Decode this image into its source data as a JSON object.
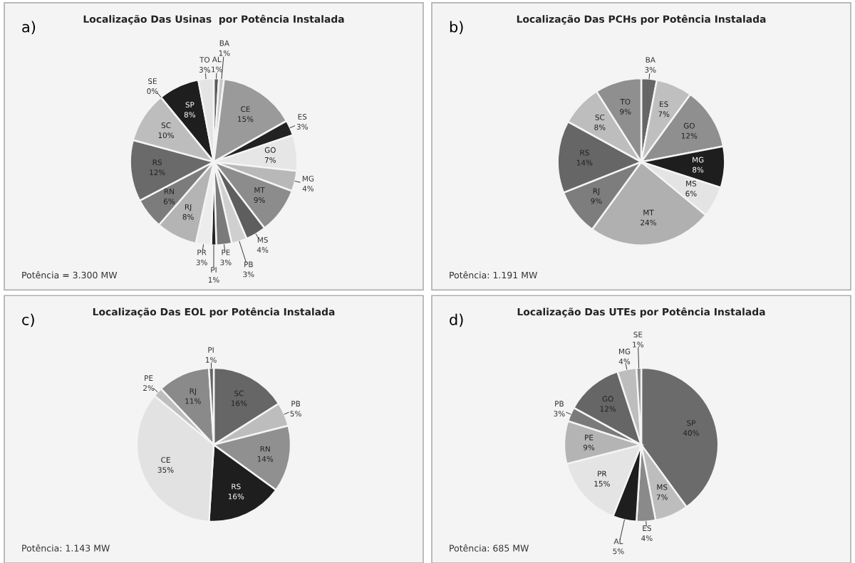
{
  "chart_data": [
    {
      "type": "pie",
      "title": "Localização Das Usinas  por Potência Instalada",
      "annotations": [
        "a)",
        "Potência = 3.300 MW"
      ],
      "categories": [
        "AL",
        "BA",
        "CE",
        "ES",
        "GO",
        "MG",
        "MT",
        "MS",
        "PB",
        "PE",
        "PI",
        "PR",
        "RJ",
        "RN",
        "RS",
        "SC",
        "SE",
        "SP",
        "TO"
      ],
      "values": [
        1,
        1,
        15,
        3,
        7,
        4,
        9,
        4,
        3,
        3,
        1,
        3,
        8,
        6,
        12,
        10,
        0,
        8,
        3
      ],
      "value_labels": [
        "1%",
        "1%",
        "15%",
        "3%",
        "7%",
        "4%",
        "9%",
        "4%",
        "3%",
        "3%",
        "1%",
        "3%",
        "8%",
        "6%",
        "12%",
        "10%",
        "0%",
        "8%",
        "3%"
      ],
      "colors": [
        "#5a5a5a",
        "#c8c8c8",
        "#9a9a9a",
        "#222222",
        "#e6e6e6",
        "#b8b8b8",
        "#8c8c8c",
        "#5e5e5e",
        "#cfcfcf",
        "#7a7a7a",
        "#222222",
        "#ececec",
        "#b4b4b4",
        "#7c7c7c",
        "#6a6a6a",
        "#bdbdbd",
        "#8a8a8a",
        "#1e1e1e",
        "#e4e4e4"
      ]
    },
    {
      "type": "pie",
      "title": "Localização Das PCHs por Potência Instalada",
      "annotations": [
        "b)",
        "Potência: 1.191 MW"
      ],
      "categories": [
        "BA",
        "ES",
        "GO",
        "MG",
        "MS",
        "MT",
        "RJ",
        "RS",
        "SC",
        "TO"
      ],
      "values": [
        3,
        7,
        12,
        8,
        6,
        24,
        9,
        14,
        8,
        9
      ],
      "value_labels": [
        "3%",
        "7%",
        "12%",
        "8%",
        "6%",
        "24%",
        "9%",
        "14%",
        "8%",
        "9%"
      ],
      "colors": [
        "#666666",
        "#bfbfbf",
        "#8f8f8f",
        "#1e1e1e",
        "#e4e4e4",
        "#b0b0b0",
        "#7d7d7d",
        "#666666",
        "#bdbdbd",
        "#8f8f8f"
      ]
    },
    {
      "type": "pie",
      "title": "Localização Das EOL por Potência Instalada",
      "annotations": [
        "c)",
        "Potência: 1.143 MW"
      ],
      "categories": [
        "SC",
        "PB",
        "RN",
        "RS",
        "CE",
        "PE",
        "RJ",
        "PI"
      ],
      "values": [
        16,
        5,
        14,
        16,
        35,
        2,
        11,
        1
      ],
      "value_labels": [
        "16%",
        "5%",
        "14%",
        "16%",
        "35%",
        "2%",
        "11%",
        "1%"
      ],
      "colors": [
        "#666666",
        "#bdbdbd",
        "#909090",
        "#1e1e1e",
        "#e2e2e2",
        "#bdbdbd",
        "#8a8a8a",
        "#666666"
      ]
    },
    {
      "type": "pie",
      "title": "Localização Das UTEs por Potência Instalada",
      "annotations": [
        "d)",
        "Potência: 685 MW"
      ],
      "categories": [
        "SP",
        "MS",
        "ES",
        "AL",
        "PR",
        "PE",
        "PB",
        "GO",
        "MG",
        "SE"
      ],
      "values": [
        40,
        7,
        4,
        5,
        15,
        9,
        3,
        12,
        4,
        1
      ],
      "value_labels": [
        "40%",
        "7%",
        "4%",
        "5%",
        "15%",
        "9%",
        "3%",
        "12%",
        "4%",
        "1%"
      ],
      "colors": [
        "#6b6b6b",
        "#bdbdbd",
        "#8a8a8a",
        "#1e1e1e",
        "#e4e4e4",
        "#b4b4b4",
        "#7a7a7a",
        "#666666",
        "#bdbdbd",
        "#8a8a8a"
      ]
    }
  ]
}
